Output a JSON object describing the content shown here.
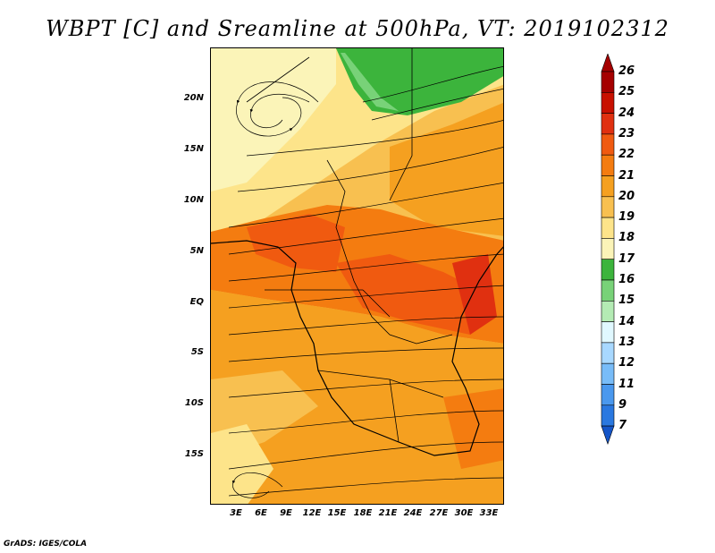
{
  "title": "WBPT [C] and Sreamline at 500hPa, VT: 2019102312",
  "footer": "GrADS: IGES/COLA",
  "map": {
    "lat_labels": [
      "20N",
      "15N",
      "10N",
      "5N",
      "EQ",
      "5S",
      "10S",
      "15S"
    ],
    "lon_labels": [
      "3E",
      "6E",
      "9E",
      "12E",
      "15E",
      "18E",
      "21E",
      "24E",
      "27E",
      "30E",
      "33E"
    ]
  },
  "colorbar": {
    "labels": [
      "26",
      "25",
      "24",
      "23",
      "22",
      "21",
      "20",
      "19",
      "18",
      "17",
      "16",
      "15",
      "14",
      "13",
      "12",
      "11",
      "9",
      "7"
    ],
    "colors": [
      "#a50000",
      "#c81000",
      "#e03010",
      "#f05a10",
      "#f47c10",
      "#f5a020",
      "#f8c050",
      "#fde48a",
      "#fbf4b8",
      "#3cb43c",
      "#78d278",
      "#b4ebb4",
      "#e0f8ff",
      "#a8d8ff",
      "#78bcf8",
      "#4a98ee",
      "#2a78e0",
      "#1455c8"
    ]
  }
}
